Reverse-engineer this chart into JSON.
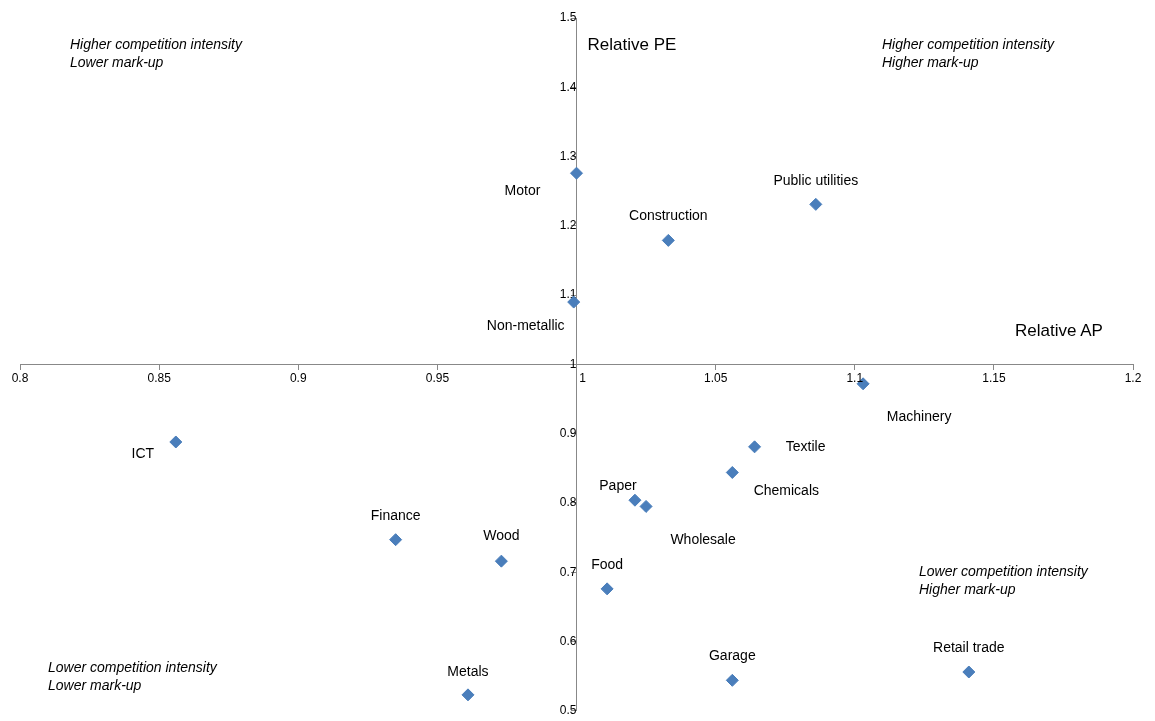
{
  "chart_data": {
    "type": "scatter",
    "xlabel": "Relative AP",
    "ylabel": "Relative PE",
    "xlim": [
      0.8,
      1.2
    ],
    "xticks": [
      0.8,
      0.85,
      0.9,
      0.95,
      1,
      1.05,
      1.1,
      1.15,
      1.2
    ],
    "ylim": [
      0.5,
      1.5
    ],
    "yticks": [
      0.5,
      0.6,
      0.7,
      0.8,
      0.9,
      1,
      1.1,
      1.2,
      1.3,
      1.4,
      1.5
    ],
    "grid": false,
    "legend": false,
    "marker": "diamond",
    "series": [
      {
        "color": "#4a7ebb",
        "x": [
          1.0,
          0.999,
          1.033,
          1.086,
          1.103,
          0.856,
          1.064,
          1.056,
          1.021,
          1.025,
          0.935,
          0.973,
          1.011,
          1.056,
          1.141,
          0.961
        ],
        "values": [
          1.276,
          1.09,
          1.179,
          1.231,
          0.972,
          0.888,
          0.881,
          0.844,
          0.804,
          0.795,
          0.747,
          0.716,
          0.676,
          0.544,
          0.556,
          0.523
        ]
      }
    ],
    "annotations": [
      {
        "text": "Motor",
        "x": 1.0,
        "y": 1.276
      },
      {
        "text": "Non-metallic",
        "x": 0.999,
        "y": 1.09
      },
      {
        "text": "Construction",
        "x": 1.033,
        "y": 1.179
      },
      {
        "text": "Public utilities",
        "x": 1.086,
        "y": 1.231
      },
      {
        "text": "Machinery",
        "x": 1.103,
        "y": 0.972
      },
      {
        "text": "ICT",
        "x": 0.856,
        "y": 0.888
      },
      {
        "text": "Textile",
        "x": 1.064,
        "y": 0.881
      },
      {
        "text": "Chemicals",
        "x": 1.056,
        "y": 0.844
      },
      {
        "text": "Paper",
        "x": 1.021,
        "y": 0.804
      },
      {
        "text": "Wholesale",
        "x": 1.025,
        "y": 0.795
      },
      {
        "text": "Finance",
        "x": 0.935,
        "y": 0.747
      },
      {
        "text": "Wood",
        "x": 0.973,
        "y": 0.716
      },
      {
        "text": "Food",
        "x": 1.011,
        "y": 0.676
      },
      {
        "text": "Garage",
        "x": 1.056,
        "y": 0.544
      },
      {
        "text": "Retail trade",
        "x": 1.141,
        "y": 0.556
      },
      {
        "text": "Metals",
        "x": 0.961,
        "y": 0.523
      },
      "Higher competition intensity\nLower mark-up",
      "Higher competition intensity\nHigher mark-up",
      "Lower competition intensity\nLower mark-up",
      "Lower competition intensity\nHigher mark-up"
    ]
  }
}
